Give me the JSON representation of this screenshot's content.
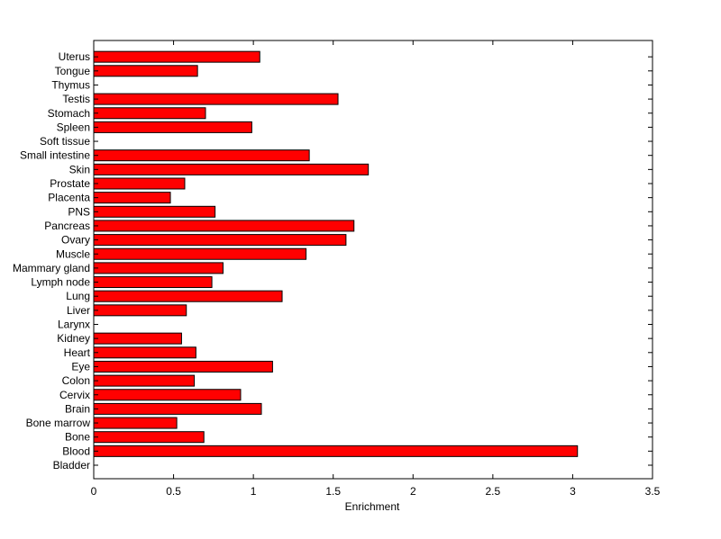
{
  "chart_data": {
    "type": "bar",
    "orientation": "horizontal",
    "title": "",
    "xlabel": "Enrichment",
    "ylabel": "",
    "xlim": [
      0,
      3.5
    ],
    "xticks": [
      0,
      0.5,
      1,
      1.5,
      2,
      2.5,
      3,
      3.5
    ],
    "xtick_labels": [
      "0",
      "0.5",
      "1",
      "1.5",
      "2",
      "2.5",
      "3",
      "3.5"
    ],
    "grid": false,
    "legend": "none",
    "bar_color": "#ff0000",
    "bar_edge_color": "#000000",
    "categories": [
      "Bladder",
      "Blood",
      "Bone",
      "Bone marrow",
      "Brain",
      "Cervix",
      "Colon",
      "Eye",
      "Heart",
      "Kidney",
      "Larynx",
      "Liver",
      "Lung",
      "Lymph node",
      "Mammary gland",
      "Muscle",
      "Ovary",
      "Pancreas",
      "PNS",
      "Placenta",
      "Prostate",
      "Skin",
      "Small intestine",
      "Soft tissue",
      "Spleen",
      "Stomach",
      "Testis",
      "Thymus",
      "Tongue",
      "Uterus"
    ],
    "values": [
      0,
      3.03,
      0.69,
      0.52,
      1.05,
      0.92,
      0.63,
      1.12,
      0.64,
      0.55,
      0,
      0.58,
      1.18,
      0.74,
      0.81,
      1.33,
      1.58,
      1.63,
      0.76,
      0.48,
      0.57,
      1.72,
      1.35,
      0,
      0.99,
      0.7,
      1.53,
      0,
      0.65,
      1.04
    ]
  }
}
